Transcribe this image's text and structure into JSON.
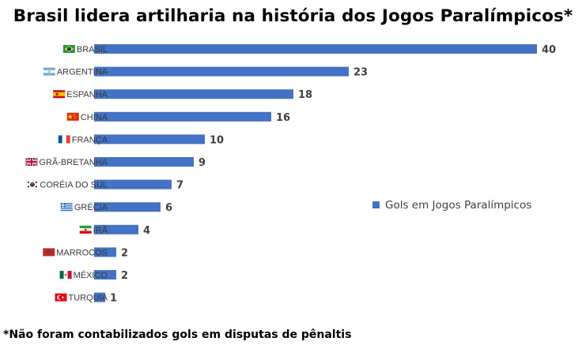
{
  "title": "Brasil lidera artilharia na história dos Jogos Paralímpicos*",
  "footnote": "*Não foram contabilizados gols em disputas de pênaltis",
  "colors": {
    "bar": "#4472C4"
  },
  "chart_data": {
    "type": "bar",
    "orientation": "horizontal",
    "categories": [
      "BRASIL",
      "ARGENTINA",
      "ESPANHA",
      "CHINA",
      "FRANÇA",
      "GRÃ-BRETANHA",
      "CORÉIA DO SUL",
      "GRÉCIA",
      "IRÃ",
      "MARROCOS",
      "MÉXICO",
      "TURQUIA"
    ],
    "flag_icons": [
      "brazil-flag-icon",
      "argentina-flag-icon",
      "spain-flag-icon",
      "china-flag-icon",
      "france-flag-icon",
      "uk-flag-icon",
      "south-korea-flag-icon",
      "greece-flag-icon",
      "iran-flag-icon",
      "morocco-flag-icon",
      "mexico-flag-icon",
      "turkey-flag-icon"
    ],
    "series": [
      {
        "name": "Gols em Jogos Paralímpicos",
        "values": [
          40,
          23,
          18,
          16,
          10,
          9,
          7,
          6,
          4,
          2,
          2,
          1
        ]
      }
    ],
    "data_labels": true,
    "xlim": [
      0,
      40
    ],
    "grid": false,
    "legend_position": "right"
  }
}
